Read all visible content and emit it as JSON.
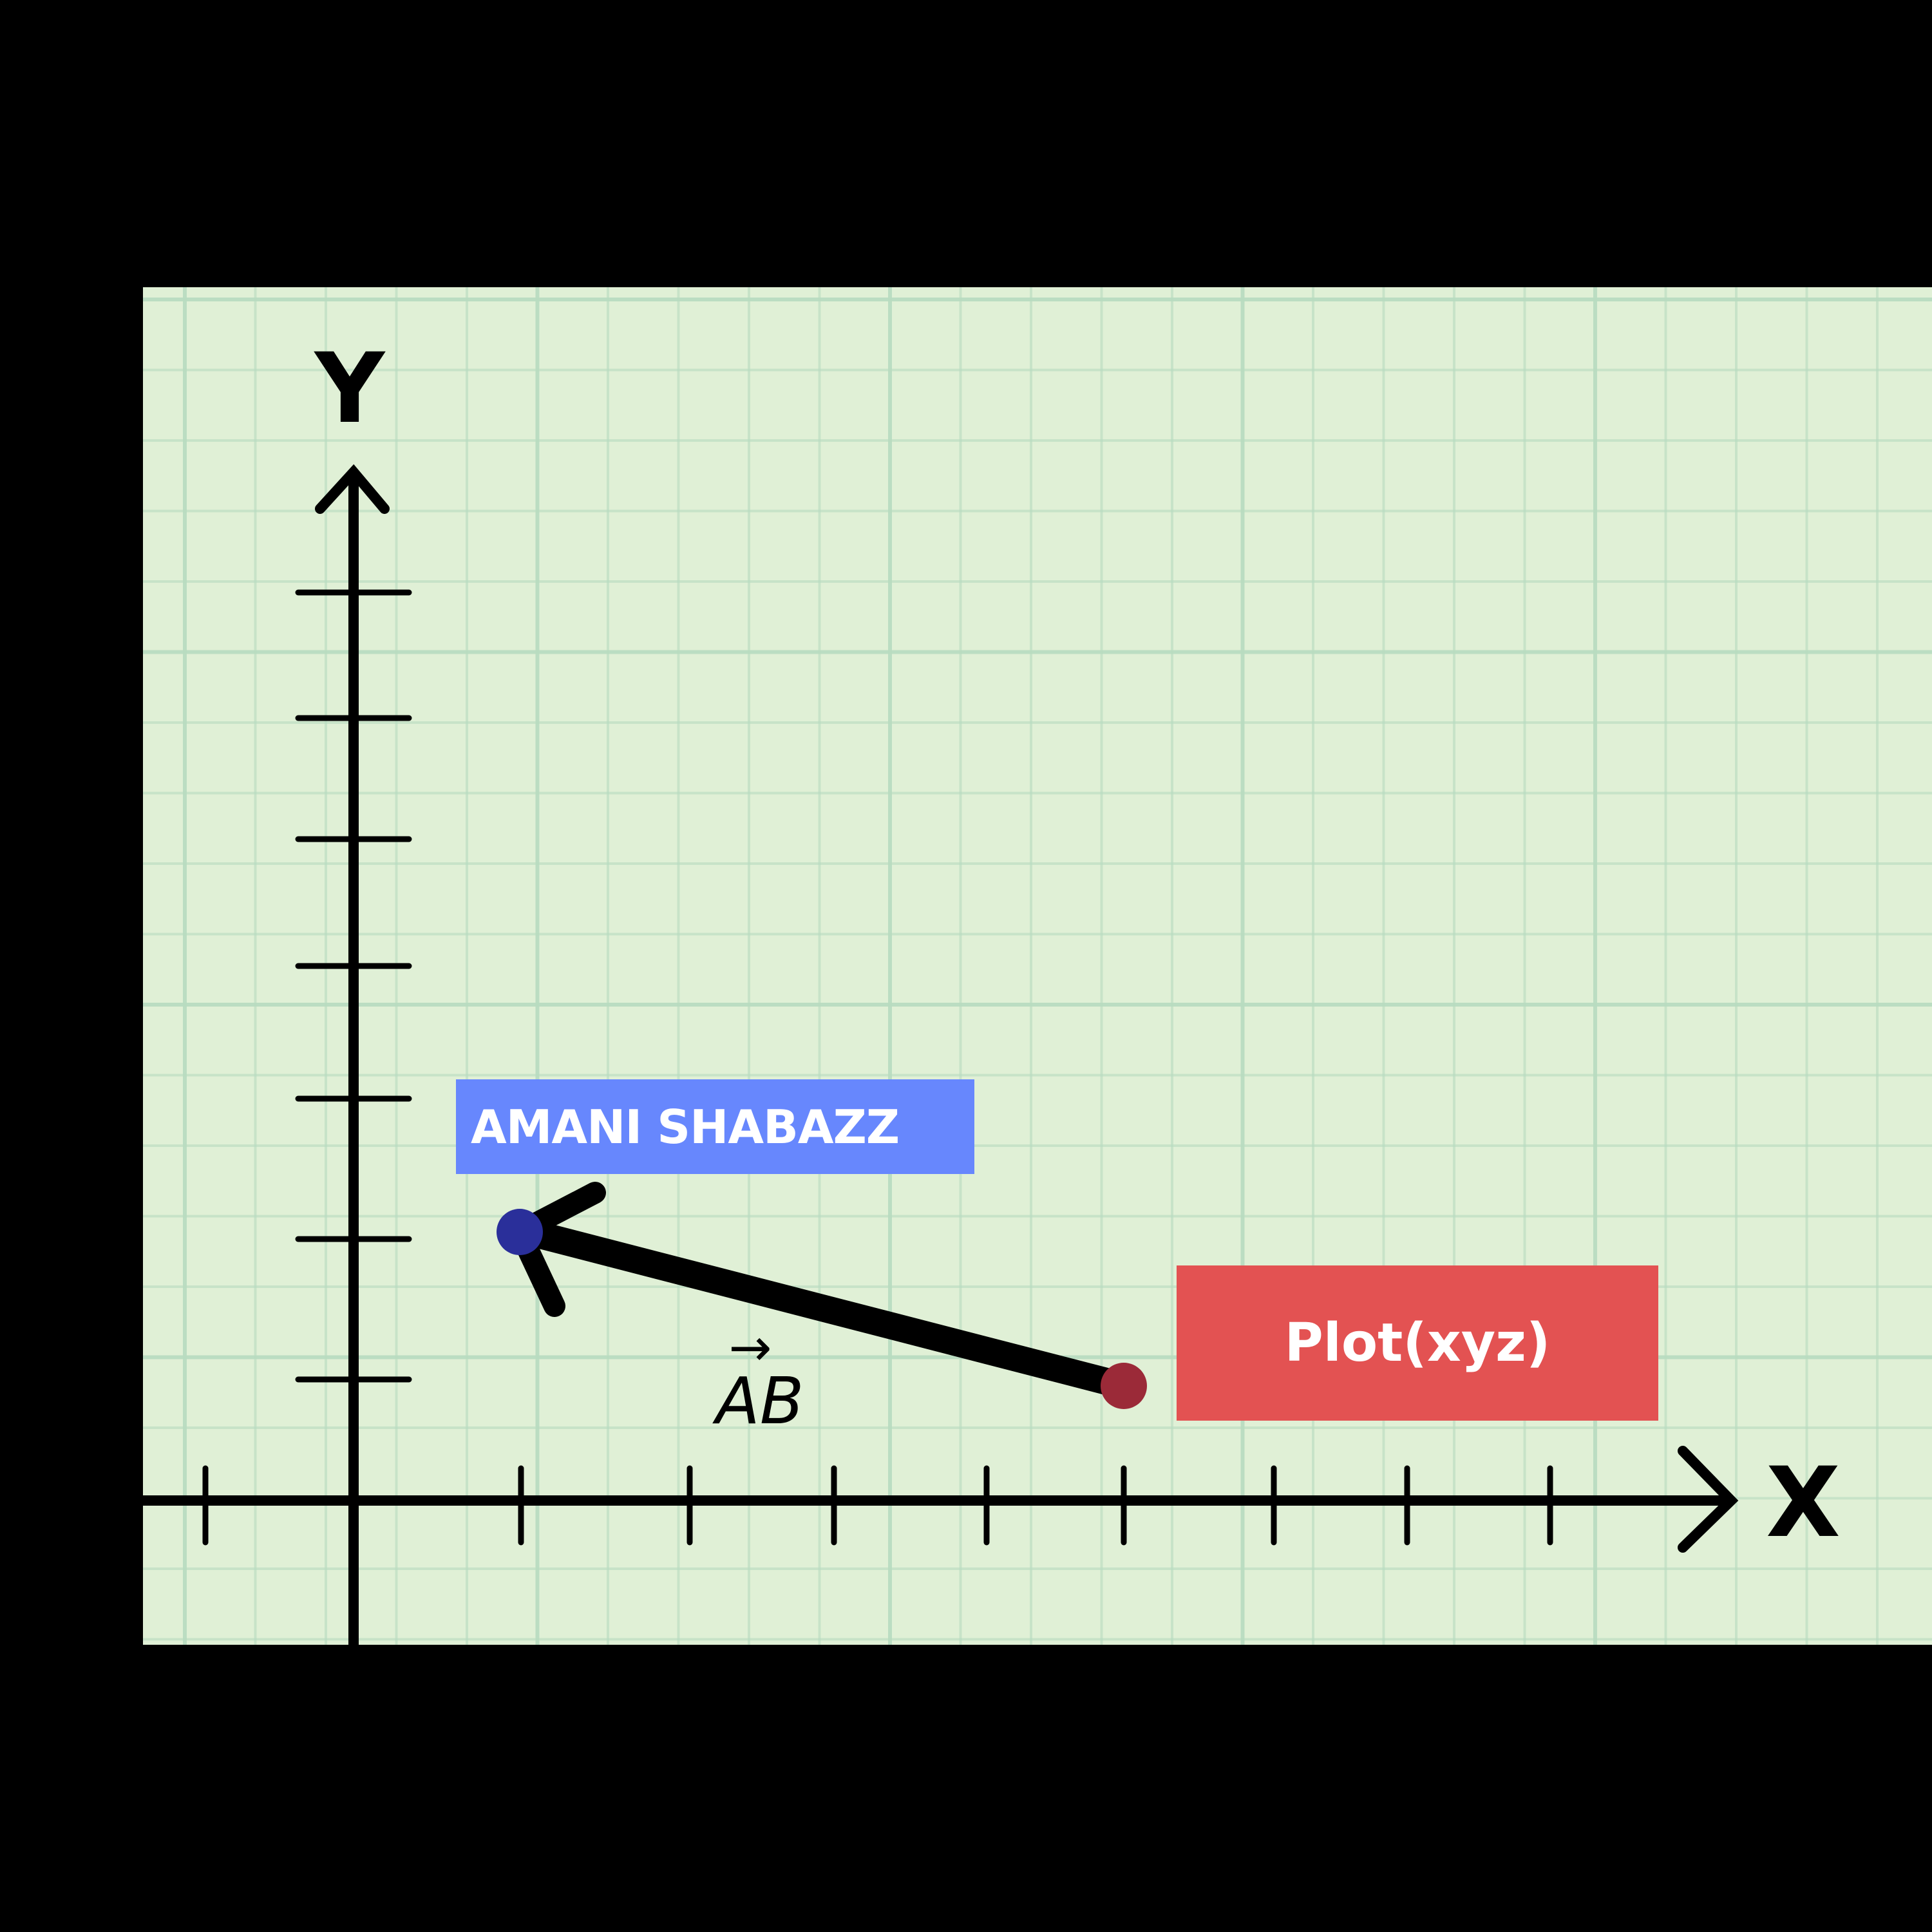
{
  "colors": {
    "background": "#000000",
    "paper": "#e0f0d6",
    "grid": "#b8dcc0",
    "axis": "#000000",
    "label_box_name": "#6787fd",
    "label_box_plot": "#e35252",
    "point_head": "#2a2f9a",
    "point_tail": "#9b2a38"
  },
  "axes": {
    "x_label": "X",
    "y_label": "Y",
    "x_tick_count": 9,
    "y_tick_count": 7
  },
  "vector": {
    "label": "AB",
    "label_arrow": "→",
    "from": "tail-red-point",
    "to": "head-blue-point"
  },
  "labels": {
    "name": "AMANI SHABAZZ",
    "plot": "Plot(xyz)"
  }
}
